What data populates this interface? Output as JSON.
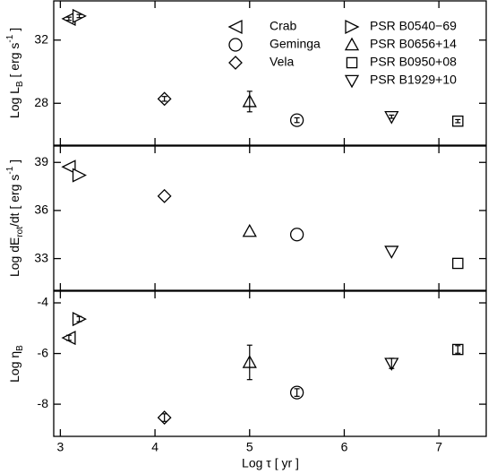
{
  "chart_data": {
    "type": "scatter",
    "xlabel": "Log τ [ yr ]",
    "xlim": [
      2.93,
      7.5
    ],
    "xticks": [
      3,
      4,
      5,
      6,
      7
    ],
    "panels": [
      {
        "ylabel": [
          "Log L",
          "B",
          " [ erg s",
          "-1",
          " ]"
        ],
        "ylim": [
          25.35,
          34.48
        ],
        "yticks": [
          28,
          32
        ]
      },
      {
        "ylabel": [
          "Log dE",
          "rot",
          "/dt [ erg s",
          "-1",
          " ]"
        ],
        "ylim": [
          31.02,
          40.02
        ],
        "yticks": [
          33,
          36,
          39
        ]
      },
      {
        "ylabel": [
          "Log η",
          "B"
        ],
        "ylim": [
          -9.27,
          -3.54
        ],
        "yticks": [
          -8,
          -6,
          -4
        ]
      }
    ],
    "series": [
      {
        "name": "Crab",
        "marker": "triangle-left",
        "x": 3.09,
        "values": [
          33.35,
          38.72,
          -5.38
        ],
        "errors": [
          0.1,
          null,
          0.1
        ]
      },
      {
        "name": "Geminga",
        "marker": "circle",
        "x": 5.5,
        "values": [
          26.93,
          34.5,
          -7.54
        ],
        "errors": [
          0.15,
          null,
          0.15
        ]
      },
      {
        "name": "Vela",
        "marker": "diamond",
        "x": 4.1,
        "values": [
          28.28,
          36.9,
          -8.53
        ],
        "errors": [
          0.15,
          null,
          0.15
        ]
      },
      {
        "name": "PSR B0540−69",
        "marker": "triangle-right",
        "x": 3.2,
        "values": [
          33.52,
          38.2,
          -4.64
        ],
        "errors": [
          0.1,
          null,
          0.1
        ]
      },
      {
        "name": "PSR B0656+14",
        "marker": "triangle-up",
        "x": 5.0,
        "values": [
          28.11,
          34.7,
          -6.35
        ],
        "errors": [
          0.65,
          null,
          0.68
        ]
      },
      {
        "name": "PSR B0950+08",
        "marker": "square",
        "x": 7.2,
        "values": [
          26.87,
          32.7,
          -5.84
        ],
        "errors": [
          0.1,
          null,
          0.15
        ]
      },
      {
        "name": "PSR B1929+10",
        "marker": "triangle-down",
        "x": 6.5,
        "values": [
          27.15,
          33.45,
          -6.39
        ],
        "errors": [
          0.1,
          null,
          0.2
        ]
      }
    ]
  }
}
